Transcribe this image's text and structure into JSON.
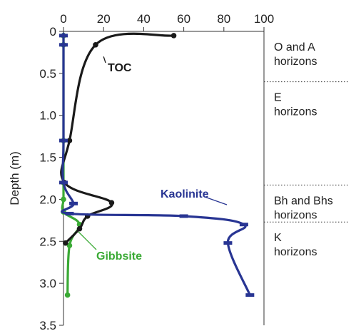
{
  "chart_data": {
    "type": "line",
    "ylabel": "Depth (m)",
    "xlim": [
      0,
      100
    ],
    "ylim": [
      3.5,
      0
    ],
    "x_ticks": [
      "0",
      "20",
      "40",
      "60",
      "80",
      "100"
    ],
    "y_ticks": [
      "0",
      "0.5",
      "1.0",
      "1.5",
      "2.0",
      "2.5",
      "3.0",
      "3.5"
    ],
    "grid": false,
    "colors": {
      "TOC": "#1a1a1a",
      "Kaolinite": "#283593",
      "Gibbsite": "#3aaa35"
    },
    "series": [
      {
        "name": "TOC",
        "marker": "circle",
        "points": [
          [
            55,
            0.05
          ],
          [
            16,
            0.16
          ],
          [
            3,
            1.3
          ],
          [
            0.5,
            1.8
          ],
          [
            24,
            2.04
          ],
          [
            12,
            2.2
          ],
          [
            8,
            2.35
          ],
          [
            1,
            2.52
          ]
        ]
      },
      {
        "name": "Kaolinite",
        "marker": "bar",
        "points": [
          [
            0,
            0.05
          ],
          [
            0,
            0.16
          ],
          [
            0,
            1.3
          ],
          [
            0,
            1.8
          ],
          [
            5,
            2.05
          ],
          [
            3,
            2.17
          ],
          [
            60,
            2.2
          ],
          [
            90,
            2.3
          ],
          [
            82,
            2.52
          ],
          [
            93,
            3.14
          ]
        ]
      },
      {
        "name": "Gibbsite",
        "marker": "circle",
        "points": [
          [
            0,
            0.05
          ],
          [
            0,
            0.16
          ],
          [
            0,
            1.3
          ],
          [
            0,
            1.8
          ],
          [
            0,
            2.0
          ],
          [
            0,
            2.15
          ],
          [
            8,
            2.3
          ],
          [
            3,
            2.55
          ],
          [
            2,
            3.14
          ]
        ]
      }
    ],
    "horizons": [
      {
        "label_lines": [
          "O and A",
          "horizons"
        ],
        "boundary": 0.6,
        "top": 0.0
      },
      {
        "label_lines": [
          "E",
          "horizons"
        ],
        "boundary": 1.83,
        "top": 0.6
      },
      {
        "label_lines": [
          "Bh and Bhs",
          "horizons"
        ],
        "boundary": 2.27,
        "top": 1.83
      },
      {
        "label_lines": [
          "K",
          "horizons"
        ],
        "boundary": null,
        "top": 2.27
      }
    ]
  }
}
